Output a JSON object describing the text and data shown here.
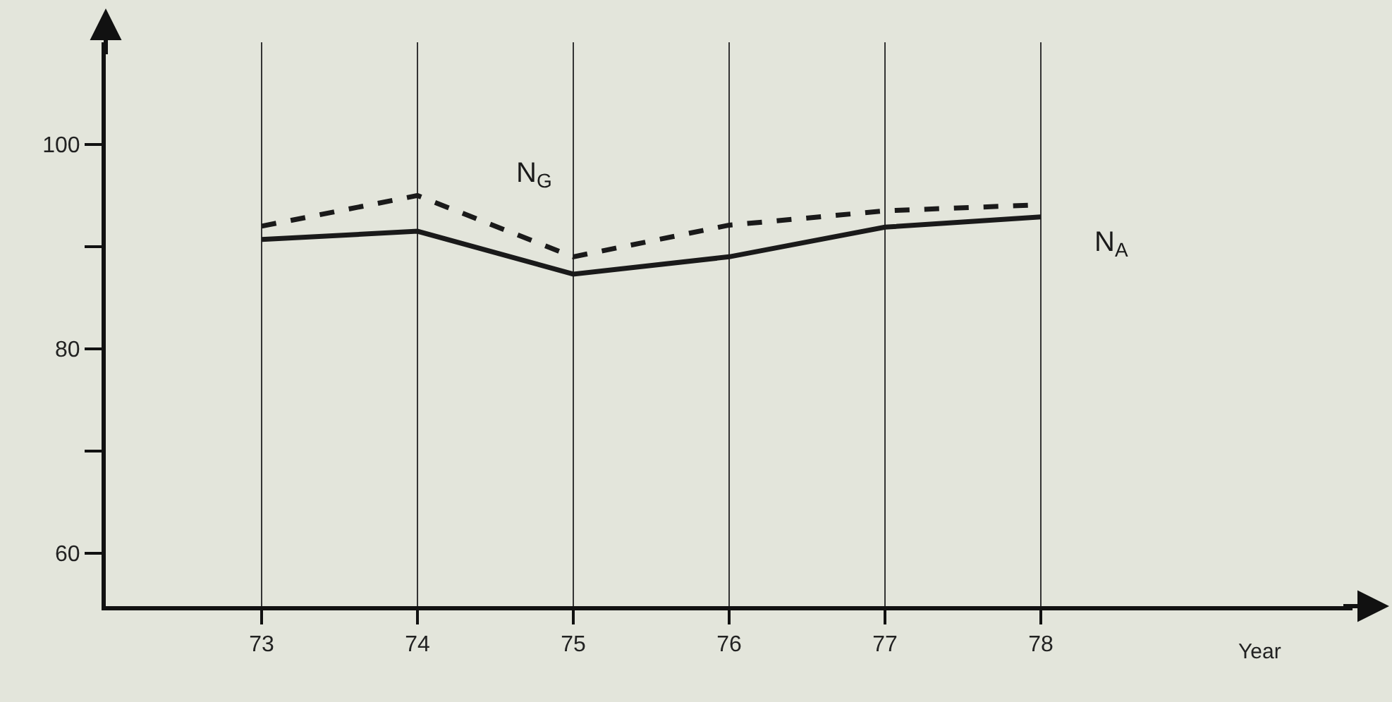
{
  "chart_data": {
    "type": "line",
    "xlabel": "Year",
    "x": [
      73,
      74,
      75,
      76,
      77,
      78
    ],
    "series": [
      {
        "name": "N$_{G}$",
        "color": "#1a1a1a",
        "line_style": "dashed",
        "values": [
          92.0,
          95.0,
          89.0,
          92.1,
          93.5,
          94.1
        ]
      },
      {
        "name": "N$_{A}$",
        "color": "#1a1a1a",
        "line_style": "solid",
        "values": [
          90.7,
          91.5,
          87.3,
          89.0,
          91.9,
          92.9
        ]
      }
    ],
    "xlim": [
      72,
      80
    ],
    "xticks": [
      73,
      74,
      75,
      76,
      77,
      78
    ],
    "ylim": [
      54.8,
      110
    ],
    "yticks": [
      60,
      {
        "value": 70,
        "label": null
      },
      80,
      {
        "value": 90,
        "label": null
      },
      100
    ],
    "grid": "x",
    "marker": "none",
    "legend": false
  }
}
